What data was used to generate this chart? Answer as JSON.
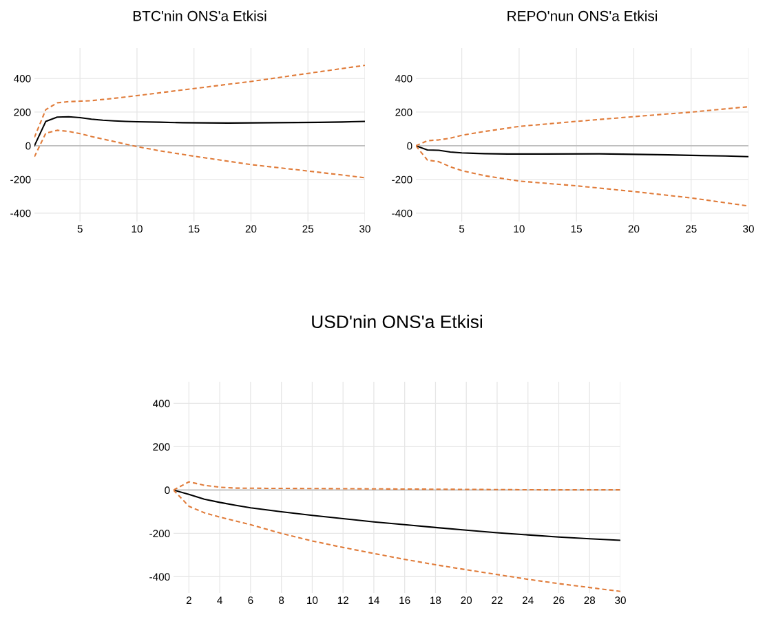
{
  "chart_data": [
    {
      "type": "line",
      "title": "BTC'nin ONS'a Etkisi",
      "xlim": [
        1,
        30
      ],
      "xticks": [
        5,
        10,
        15,
        20,
        25,
        30
      ],
      "ylim": [
        -450,
        580
      ],
      "yticks": [
        -400,
        -200,
        0,
        200,
        400
      ],
      "grid": true,
      "ref_lines": [
        {
          "axis": "y",
          "value": 0,
          "color": "#bfbfbf"
        }
      ],
      "series": [
        {
          "color": "#000000",
          "line_style": "solid",
          "x": [
            1,
            2,
            3,
            4,
            5,
            6,
            7,
            8,
            9,
            10,
            12,
            14,
            16,
            18,
            20,
            22,
            24,
            26,
            28,
            30
          ],
          "values": [
            0,
            145,
            170,
            172,
            167,
            158,
            152,
            148,
            145,
            143,
            140,
            137,
            136,
            135,
            136,
            137,
            138,
            139,
            141,
            145
          ]
        },
        {
          "color": "#e07b39",
          "line_style": "dashed",
          "x": [
            1,
            2,
            3,
            4,
            5,
            6,
            7,
            8,
            10,
            15,
            20,
            25,
            30
          ],
          "values": [
            50,
            215,
            255,
            262,
            265,
            268,
            275,
            282,
            298,
            340,
            382,
            430,
            478
          ]
        },
        {
          "color": "#e07b39",
          "line_style": "dashed",
          "x": [
            1,
            2,
            3,
            4,
            5,
            6,
            8,
            10,
            12,
            15,
            20,
            25,
            30
          ],
          "values": [
            -65,
            75,
            92,
            85,
            72,
            55,
            25,
            -5,
            -30,
            -62,
            -112,
            -150,
            -190
          ]
        }
      ]
    },
    {
      "type": "line",
      "title": "REPO'nun ONS'a Etkisi",
      "xlim": [
        1,
        30
      ],
      "xticks": [
        5,
        10,
        15,
        20,
        25,
        30
      ],
      "ylim": [
        -450,
        580
      ],
      "yticks": [
        -400,
        -200,
        0,
        200,
        400
      ],
      "grid": true,
      "ref_lines": [
        {
          "axis": "y",
          "value": 0,
          "color": "#bfbfbf"
        }
      ],
      "series": [
        {
          "color": "#000000",
          "line_style": "solid",
          "x": [
            1,
            2,
            3,
            4,
            5,
            6,
            7,
            9,
            12,
            17,
            20,
            23,
            25,
            28,
            30
          ],
          "values": [
            0,
            -25,
            -27,
            -37,
            -42,
            -45,
            -47,
            -49,
            -49,
            -48,
            -51,
            -54,
            -57,
            -61,
            -65
          ]
        },
        {
          "color": "#e07b39",
          "line_style": "dashed",
          "x": [
            1,
            2,
            3,
            4,
            5,
            7,
            10,
            15,
            20,
            25,
            30
          ],
          "values": [
            0,
            30,
            35,
            45,
            62,
            85,
            115,
            145,
            173,
            200,
            232
          ]
        },
        {
          "color": "#e07b39",
          "line_style": "dashed",
          "x": [
            1,
            2,
            3,
            4,
            5,
            7,
            10,
            15,
            20,
            25,
            30
          ],
          "values": [
            0,
            -85,
            -95,
            -125,
            -148,
            -178,
            -210,
            -238,
            -272,
            -310,
            -358
          ]
        }
      ]
    },
    {
      "type": "line",
      "title": "USD'nin ONS'a Etkisi",
      "xlim": [
        1,
        30
      ],
      "xticks": [
        2,
        4,
        6,
        8,
        10,
        12,
        14,
        16,
        18,
        20,
        22,
        24,
        26,
        28,
        30
      ],
      "ylim": [
        -475,
        500
      ],
      "yticks": [
        -400,
        -200,
        0,
        200,
        400
      ],
      "grid": true,
      "ref_lines": [
        {
          "axis": "y",
          "value": 0,
          "color": "#bfbfbf"
        }
      ],
      "series": [
        {
          "color": "#000000",
          "line_style": "solid",
          "x": [
            1,
            2,
            3,
            4,
            5,
            6,
            8,
            10,
            12,
            14,
            16,
            18,
            20,
            22,
            24,
            26,
            28,
            30
          ],
          "values": [
            0,
            -20,
            -42,
            -57,
            -70,
            -82,
            -100,
            -117,
            -132,
            -147,
            -160,
            -173,
            -185,
            -197,
            -207,
            -217,
            -225,
            -232
          ]
        },
        {
          "color": "#e07b39",
          "line_style": "dashed",
          "x": [
            1,
            2,
            3,
            4,
            5,
            7,
            10,
            15,
            20,
            25,
            30
          ],
          "values": [
            0,
            38,
            22,
            13,
            9,
            8,
            7,
            5,
            3,
            1,
            1
          ]
        },
        {
          "color": "#e07b39",
          "line_style": "dashed",
          "x": [
            1,
            2,
            3,
            4,
            6,
            8,
            10,
            12,
            14,
            16,
            18,
            20,
            22,
            24,
            26,
            28,
            30
          ],
          "values": [
            0,
            -75,
            -105,
            -125,
            -160,
            -200,
            -235,
            -265,
            -293,
            -320,
            -345,
            -368,
            -390,
            -412,
            -432,
            -450,
            -468
          ]
        }
      ]
    }
  ]
}
